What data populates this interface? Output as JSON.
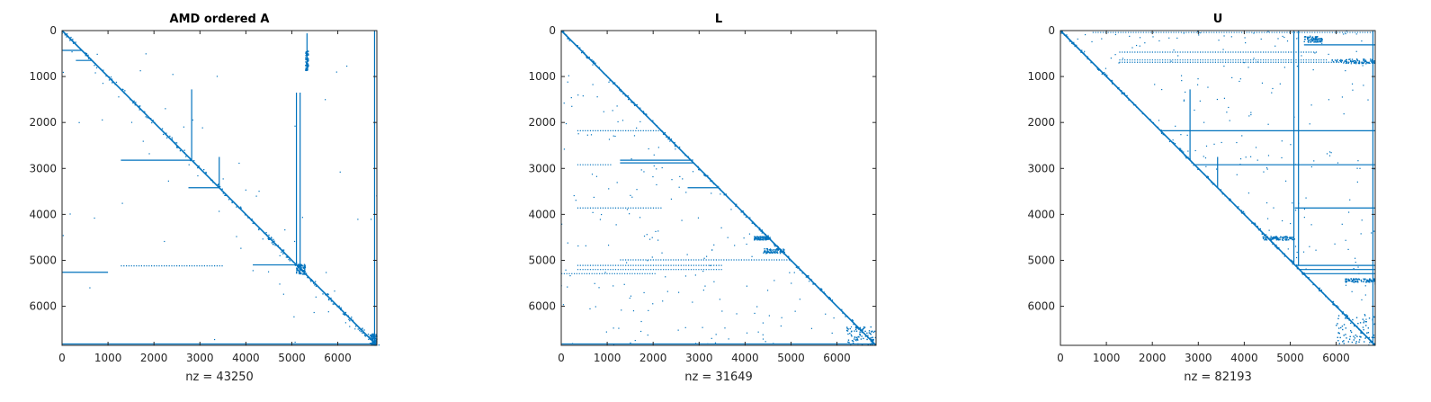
{
  "figure": {
    "colors": {
      "marker": "#0072BD",
      "axis": "#262626",
      "background": "#ffffff"
    }
  },
  "chart_data": [
    {
      "type": "scatter",
      "title": "AMD ordered A",
      "xlabel": "nz = 43250",
      "ylabel": "",
      "xlim": [
        0,
        6850
      ],
      "ylim": [
        6850,
        0
      ],
      "xticks": [
        "0",
        "1000",
        "2000",
        "3000",
        "4000",
        "5000",
        "6000"
      ],
      "yticks": [
        "0",
        "1000",
        "2000",
        "3000",
        "4000",
        "5000",
        "6000"
      ],
      "grid": false,
      "nz": 43250,
      "pattern": {
        "diagonal": {
          "from": 0,
          "to": 6850,
          "band": 60
        },
        "hlines": [
          {
            "y": 430,
            "x0": 0,
            "x1": 430
          },
          {
            "y": 650,
            "x0": 300,
            "x1": 650
          },
          {
            "y": 2820,
            "x0": 1280,
            "x1": 2820
          },
          {
            "y": 3420,
            "x0": 2750,
            "x1": 3420
          },
          {
            "y": 5120,
            "x0": 1280,
            "x1": 3500,
            "dotted": true
          },
          {
            "y": 5100,
            "x0": 4150,
            "x1": 5100
          },
          {
            "y": 5260,
            "x0": 0,
            "x1": 1000
          },
          {
            "y": 6820,
            "x0": 0,
            "x1": 6850
          }
        ],
        "vlines": [
          {
            "x": 2820,
            "y0": 1280,
            "y1": 2820
          },
          {
            "x": 3420,
            "y0": 2750,
            "y1": 3420
          },
          {
            "x": 5100,
            "y0": 1350,
            "y1": 5100
          },
          {
            "x": 5180,
            "y0": 1350,
            "y1": 5100
          },
          {
            "x": 5330,
            "y0": 60,
            "y1": 880
          },
          {
            "x": 6800,
            "y0": 0,
            "y1": 6850
          }
        ],
        "clusters": [
          {
            "x0": 5300,
            "x1": 5360,
            "y0": 450,
            "y1": 880
          },
          {
            "x0": 5100,
            "x1": 5300,
            "y0": 5080,
            "y1": 5300
          },
          {
            "x0": 6700,
            "x1": 6850,
            "y0": 6600,
            "y1": 6850
          }
        ],
        "scatter": 140
      }
    },
    {
      "type": "scatter",
      "title": "L",
      "xlabel": "nz = 31649",
      "ylabel": "",
      "xlim": [
        0,
        6850
      ],
      "ylim": [
        6850,
        0
      ],
      "xticks": [
        "0",
        "1000",
        "2000",
        "3000",
        "4000",
        "5000",
        "6000"
      ],
      "yticks": [
        "0",
        "1000",
        "2000",
        "3000",
        "4000",
        "5000",
        "6000"
      ],
      "grid": false,
      "nz": 31649,
      "pattern": {
        "diagonal": {
          "from": 0,
          "to": 6850,
          "band": 40
        },
        "hlines": [
          {
            "y": 2180,
            "x0": 350,
            "x1": 2180,
            "dotted": true
          },
          {
            "y": 2820,
            "x0": 1280,
            "x1": 2820
          },
          {
            "y": 2880,
            "x0": 1280,
            "x1": 2880
          },
          {
            "y": 2920,
            "x0": 350,
            "x1": 1100,
            "dotted": true
          },
          {
            "y": 3420,
            "x0": 2750,
            "x1": 3420
          },
          {
            "y": 3860,
            "x0": 350,
            "x1": 2200,
            "dotted": true
          },
          {
            "y": 4990,
            "x0": 1280,
            "x1": 4990,
            "dotted": true
          },
          {
            "y": 5110,
            "x0": 350,
            "x1": 3500,
            "dotted": true
          },
          {
            "y": 5200,
            "x0": 350,
            "x1": 3500,
            "dotted": true
          },
          {
            "y": 5290,
            "x0": 0,
            "x1": 2050,
            "dotted": true
          },
          {
            "y": 6820,
            "x0": 0,
            "x1": 6850
          }
        ],
        "vlines": [],
        "clusters": [
          {
            "x0": 4200,
            "x1": 4550,
            "y0": 4480,
            "y1": 4560
          },
          {
            "x0": 4400,
            "x1": 4850,
            "y0": 4750,
            "y1": 4850
          },
          {
            "x0": 6200,
            "x1": 6850,
            "y0": 6450,
            "y1": 6850
          }
        ],
        "scatter": 180
      }
    },
    {
      "type": "scatter",
      "title": "U",
      "xlabel": "nz = 82193",
      "ylabel": "",
      "xlim": [
        0,
        6850
      ],
      "ylim": [
        6850,
        0
      ],
      "xticks": [
        "0",
        "1000",
        "2000",
        "3000",
        "4000",
        "5000",
        "6000"
      ],
      "yticks": [
        "0",
        "1000",
        "2000",
        "3000",
        "4000",
        "5000",
        "6000"
      ],
      "grid": false,
      "nz": 82193,
      "pattern": {
        "diagonal": {
          "from": 0,
          "to": 6850,
          "band": 40
        },
        "hlines": [
          {
            "y": 40,
            "x0": 700,
            "x1": 6850,
            "dotted": true
          },
          {
            "y": 310,
            "x0": 5300,
            "x1": 6850
          },
          {
            "y": 470,
            "x0": 1280,
            "x1": 5600,
            "dotted": true
          },
          {
            "y": 640,
            "x0": 1280,
            "x1": 5800,
            "dotted": true
          },
          {
            "y": 690,
            "x0": 1280,
            "x1": 6850,
            "dotted": true
          },
          {
            "y": 2180,
            "x0": 2180,
            "x1": 6850
          },
          {
            "y": 2920,
            "x0": 2920,
            "x1": 6850
          },
          {
            "y": 3860,
            "x0": 5100,
            "x1": 6850
          },
          {
            "y": 5110,
            "x0": 5110,
            "x1": 6850
          },
          {
            "y": 5200,
            "x0": 5200,
            "x1": 6850
          },
          {
            "y": 5290,
            "x0": 5290,
            "x1": 6850
          }
        ],
        "vlines": [
          {
            "x": 2820,
            "y0": 1280,
            "y1": 2820
          },
          {
            "x": 3420,
            "y0": 2750,
            "y1": 3420
          },
          {
            "x": 5080,
            "y0": 0,
            "y1": 5080
          },
          {
            "x": 5180,
            "y0": 0,
            "y1": 5100
          },
          {
            "x": 6800,
            "y0": 0,
            "y1": 6850
          }
        ],
        "clusters": [
          {
            "x0": 5900,
            "x1": 6850,
            "y0": 620,
            "y1": 720
          },
          {
            "x0": 5300,
            "x1": 5700,
            "y0": 120,
            "y1": 260
          },
          {
            "x0": 4400,
            "x1": 5100,
            "y0": 4480,
            "y1": 4560
          },
          {
            "x0": 6200,
            "x1": 6850,
            "y0": 5400,
            "y1": 5480
          },
          {
            "x0": 6000,
            "x1": 6850,
            "y0": 6200,
            "y1": 6850
          }
        ],
        "scatter": 200
      }
    }
  ]
}
